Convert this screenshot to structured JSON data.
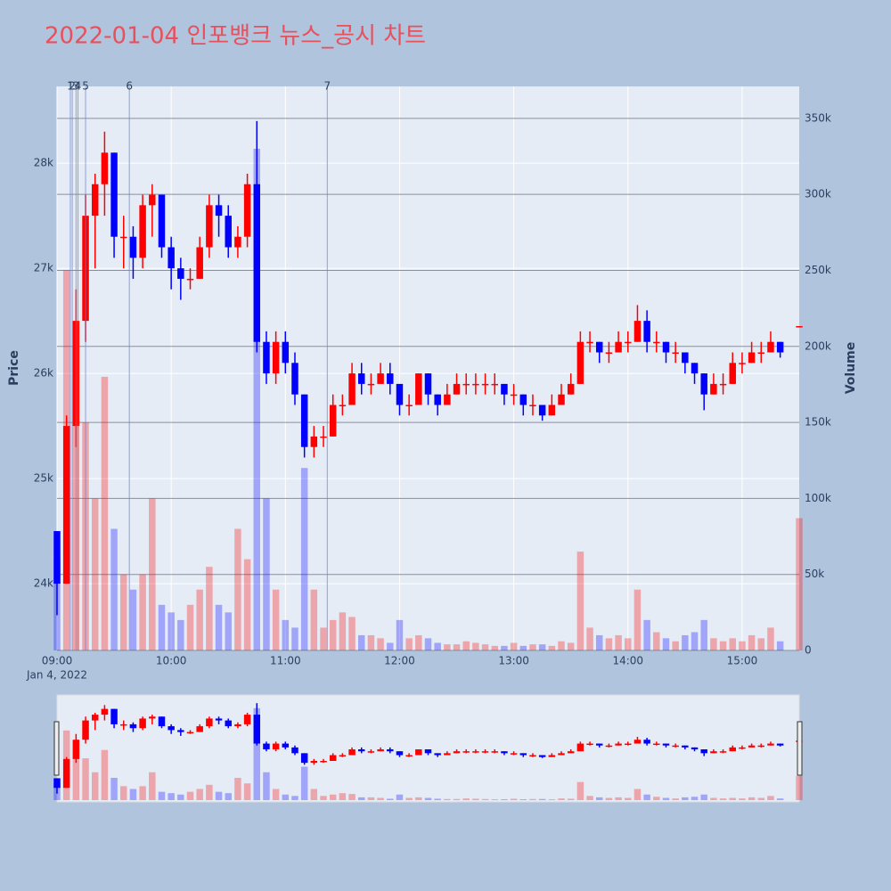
{
  "chart_data": {
    "type": "candlestick",
    "title": "2022-01-04 인포뱅크 뉴스_공시 차트",
    "x_date_label": "Jan 4, 2022",
    "y_title": "Price",
    "y2_title": "Volume",
    "increasing_color": "#ff0000",
    "decreasing_color": "#0000ff",
    "x": [
      "09:00",
      "09:05",
      "09:10",
      "09:15",
      "09:20",
      "09:25",
      "09:30",
      "09:35",
      "09:40",
      "09:45",
      "09:50",
      "09:55",
      "10:00",
      "10:05",
      "10:10",
      "10:15",
      "10:20",
      "10:25",
      "10:30",
      "10:35",
      "10:40",
      "10:45",
      "10:50",
      "10:55",
      "11:00",
      "11:05",
      "11:10",
      "11:15",
      "11:20",
      "11:25",
      "11:30",
      "11:35",
      "11:40",
      "11:45",
      "11:50",
      "11:55",
      "12:00",
      "12:05",
      "12:10",
      "12:15",
      "12:20",
      "12:25",
      "12:30",
      "12:35",
      "12:40",
      "12:45",
      "12:50",
      "12:55",
      "13:00",
      "13:05",
      "13:10",
      "13:15",
      "13:20",
      "13:25",
      "13:30",
      "13:35",
      "13:40",
      "13:45",
      "13:50",
      "13:55",
      "14:00",
      "14:05",
      "14:10",
      "14:15",
      "14:20",
      "14:25",
      "14:30",
      "14:35",
      "14:40",
      "14:45",
      "14:50",
      "14:55",
      "15:00",
      "15:05",
      "15:10",
      "15:15",
      "15:20",
      "15:30"
    ],
    "open": [
      24500,
      24000,
      25500,
      26500,
      27500,
      27800,
      28100,
      27300,
      27300,
      27100,
      27600,
      27700,
      27200,
      27000,
      26900,
      26900,
      27200,
      27600,
      27500,
      27200,
      27300,
      27800,
      26300,
      26000,
      26300,
      26100,
      25800,
      25300,
      25400,
      25400,
      25700,
      25700,
      26000,
      25900,
      25900,
      26000,
      25900,
      25700,
      25700,
      26000,
      25800,
      25700,
      25800,
      25900,
      25900,
      25900,
      25900,
      25900,
      25800,
      25800,
      25700,
      25700,
      25600,
      25700,
      25800,
      25900,
      26300,
      26300,
      26200,
      26200,
      26300,
      26300,
      26500,
      26300,
      26300,
      26200,
      26200,
      26100,
      26000,
      25800,
      25900,
      25900,
      26100,
      26100,
      26200,
      26200,
      26300,
      26450
    ],
    "high": [
      24500,
      25600,
      26800,
      27700,
      27900,
      28300,
      28100,
      27500,
      27400,
      27700,
      27800,
      27700,
      27300,
      27100,
      27000,
      27300,
      27700,
      27700,
      27600,
      27400,
      27900,
      28400,
      26400,
      26400,
      26400,
      26200,
      25800,
      25500,
      25500,
      25800,
      25800,
      26100,
      26100,
      26000,
      26100,
      26100,
      25900,
      25800,
      26000,
      26000,
      25800,
      25900,
      26000,
      26000,
      26000,
      26000,
      26000,
      25900,
      25900,
      25800,
      25800,
      25700,
      25800,
      25900,
      26000,
      26400,
      26400,
      26300,
      26300,
      26400,
      26400,
      26650,
      26600,
      26400,
      26300,
      26300,
      26200,
      26100,
      26000,
      26000,
      26000,
      26200,
      26200,
      26300,
      26300,
      26400,
      26300,
      26450
    ],
    "low": [
      23700,
      24000,
      25300,
      26300,
      27000,
      27500,
      27100,
      27000,
      26900,
      27000,
      27300,
      27100,
      26800,
      26700,
      26800,
      26900,
      27100,
      27300,
      27100,
      27100,
      27200,
      26200,
      25900,
      25900,
      26000,
      25700,
      25200,
      25200,
      25300,
      25400,
      25600,
      25700,
      25800,
      25800,
      25900,
      25800,
      25600,
      25600,
      25700,
      25700,
      25600,
      25700,
      25800,
      25800,
      25800,
      25800,
      25800,
      25700,
      25700,
      25600,
      25600,
      25550,
      25600,
      25700,
      25800,
      25900,
      26200,
      26100,
      26100,
      26200,
      26200,
      26300,
      26200,
      26200,
      26100,
      26100,
      26000,
      25900,
      25650,
      25800,
      25800,
      25900,
      26000,
      26100,
      26100,
      26200,
      26150,
      26450
    ],
    "close": [
      24000,
      25500,
      26500,
      27500,
      27800,
      28100,
      27300,
      27300,
      27100,
      27600,
      27700,
      27200,
      27000,
      26900,
      26900,
      27200,
      27600,
      27500,
      27200,
      27300,
      27800,
      26300,
      26000,
      26300,
      26100,
      25800,
      25300,
      25400,
      25400,
      25700,
      25700,
      26000,
      25900,
      25900,
      26000,
      25900,
      25700,
      25700,
      26000,
      25800,
      25700,
      25800,
      25900,
      25900,
      25900,
      25900,
      25900,
      25800,
      25800,
      25700,
      25700,
      25600,
      25700,
      25800,
      25900,
      26300,
      26300,
      26200,
      26200,
      26300,
      26300,
      26500,
      26300,
      26300,
      26200,
      26200,
      26100,
      26000,
      25800,
      25900,
      25900,
      26100,
      26100,
      26200,
      26200,
      26300,
      26200,
      26450
    ],
    "volume": [
      60000,
      250000,
      200000,
      150000,
      100000,
      180000,
      80000,
      50000,
      40000,
      50000,
      100000,
      30000,
      25000,
      20000,
      30000,
      40000,
      55000,
      30000,
      25000,
      80000,
      60000,
      330000,
      100000,
      40000,
      20000,
      15000,
      120000,
      40000,
      15000,
      20000,
      25000,
      22000,
      10000,
      10000,
      8000,
      5000,
      20000,
      8000,
      10000,
      8000,
      5000,
      4000,
      4000,
      6000,
      5000,
      4000,
      3000,
      3000,
      5000,
      3000,
      4000,
      4000,
      3000,
      6000,
      5000,
      65000,
      15000,
      10000,
      8000,
      10000,
      8000,
      40000,
      20000,
      12000,
      8000,
      6000,
      10000,
      12000,
      20000,
      8000,
      6000,
      8000,
      6000,
      10000,
      8000,
      15000,
      6000,
      87000
    ],
    "xlim": [
      "09:00",
      "15:30"
    ],
    "xticks": [
      "09:00",
      "10:00",
      "11:00",
      "12:00",
      "13:00",
      "14:00",
      "15:00"
    ],
    "ylim": [
      23365,
      28730
    ],
    "yticks": [
      {
        "value": 24000,
        "label": "24k"
      },
      {
        "value": 25000,
        "label": "25k"
      },
      {
        "value": 26000,
        "label": "26k"
      },
      {
        "value": 27000,
        "label": "27k"
      },
      {
        "value": 28000,
        "label": "28k"
      }
    ],
    "y2lim": [
      0,
      371000
    ],
    "y2ticks": [
      0,
      {
        "value": 50000,
        "label": "50k"
      },
      {
        "value": 100000,
        "label": "100k"
      },
      {
        "value": 150000,
        "label": "150k"
      },
      {
        "value": 200000,
        "label": "200k"
      },
      {
        "value": 250000,
        "label": "250k"
      },
      {
        "value": 300000,
        "label": "300k"
      },
      {
        "value": 350000,
        "label": "350k"
      }
    ],
    "annotations": [
      {
        "x": "09:07",
        "label": "1"
      },
      {
        "x": "09:08",
        "label": "2"
      },
      {
        "x": "09:10",
        "label": "3"
      },
      {
        "x": "09:11",
        "label": "4"
      },
      {
        "x": "09:15",
        "label": "5"
      },
      {
        "x": "09:38",
        "label": "6"
      },
      {
        "x": "11:22",
        "label": "7"
      }
    ],
    "grid": true,
    "range_slider": true
  }
}
